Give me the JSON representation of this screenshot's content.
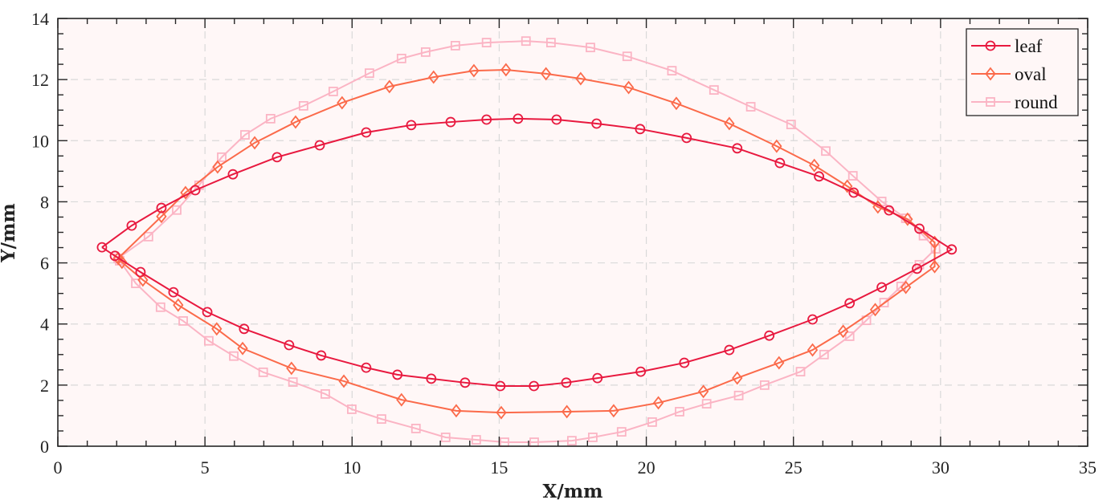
{
  "chart_data": {
    "type": "line",
    "title": "",
    "xlabel": "X/mm",
    "ylabel": "Y/mm",
    "xlim": [
      0,
      35
    ],
    "ylim": [
      0,
      14
    ],
    "xticks": [
      0,
      5,
      10,
      15,
      20,
      25,
      30,
      35
    ],
    "yticks": [
      0,
      2,
      4,
      6,
      8,
      10,
      12,
      14
    ],
    "xtick_labels": [
      "0",
      "5",
      "10",
      "15",
      "20",
      "25",
      "30",
      "35"
    ],
    "ytick_labels": [
      "0",
      "2",
      "4",
      "6",
      "8",
      "10",
      "12",
      "14"
    ],
    "grid": true,
    "legend_position": "upper right",
    "background": "#fff7f7",
    "series": [
      {
        "name": "leaf",
        "color": "#e8193f",
        "marker": "circle",
        "x": [
          1.5,
          2.51,
          3.52,
          4.67,
          5.95,
          7.45,
          8.9,
          10.48,
          12.01,
          13.35,
          14.57,
          15.64,
          16.95,
          18.31,
          19.79,
          21.37,
          23.09,
          24.54,
          25.87,
          27.05,
          28.25,
          29.28,
          30.38,
          29.2,
          28.0,
          26.91,
          25.65,
          24.18,
          22.82,
          21.29,
          19.81,
          18.34,
          17.28,
          16.18,
          15.04,
          13.84,
          12.69,
          11.54,
          10.48,
          8.95,
          7.86,
          6.33,
          5.08,
          3.93,
          2.81,
          1.94,
          1.5
        ],
        "y": [
          6.51,
          7.22,
          7.8,
          8.38,
          8.9,
          9.46,
          9.85,
          10.27,
          10.51,
          10.61,
          10.69,
          10.72,
          10.69,
          10.56,
          10.38,
          10.09,
          9.75,
          9.27,
          8.83,
          8.3,
          7.72,
          7.12,
          6.44,
          5.81,
          5.2,
          4.68,
          4.15,
          3.62,
          3.15,
          2.73,
          2.44,
          2.23,
          2.08,
          1.97,
          1.97,
          2.08,
          2.21,
          2.34,
          2.57,
          2.97,
          3.31,
          3.84,
          4.39,
          5.04,
          5.7,
          6.23,
          6.51
        ]
      },
      {
        "name": "oval",
        "color": "#fb6a4a",
        "marker": "diamond",
        "x": [
          2.05,
          3.52,
          4.34,
          5.43,
          6.69,
          8.08,
          9.66,
          11.27,
          12.77,
          14.14,
          15.23,
          16.59,
          17.77,
          19.4,
          21.02,
          22.82,
          24.43,
          25.71,
          26.83,
          27.87,
          28.88,
          29.8,
          29.8,
          28.82,
          27.78,
          26.69,
          25.65,
          24.51,
          23.09,
          21.94,
          20.41,
          18.89,
          17.3,
          15.07,
          13.54,
          11.68,
          9.72,
          7.94,
          6.28,
          5.4,
          4.09,
          2.89,
          2.18,
          2.05
        ],
        "y": [
          6.15,
          7.52,
          8.3,
          9.14,
          9.93,
          10.61,
          11.24,
          11.77,
          12.08,
          12.29,
          12.32,
          12.19,
          12.03,
          11.74,
          11.22,
          10.56,
          9.82,
          9.19,
          8.51,
          7.83,
          7.43,
          6.67,
          5.88,
          5.2,
          4.47,
          3.76,
          3.15,
          2.73,
          2.23,
          1.79,
          1.42,
          1.16,
          1.13,
          1.1,
          1.16,
          1.52,
          2.13,
          2.55,
          3.2,
          3.84,
          4.62,
          5.44,
          6.02,
          6.15
        ]
      },
      {
        "name": "round",
        "color": "#fbb4c4",
        "marker": "square",
        "x": [
          2.05,
          3.08,
          4.04,
          4.8,
          5.57,
          6.36,
          7.23,
          8.35,
          9.36,
          10.59,
          11.68,
          12.5,
          13.51,
          14.57,
          15.91,
          16.76,
          18.1,
          19.35,
          20.87,
          22.3,
          23.55,
          24.92,
          26.1,
          27.02,
          28.0,
          28.82,
          29.42,
          29.83,
          29.28,
          28.66,
          28.08,
          27.48,
          26.91,
          26.04,
          25.24,
          24.02,
          23.14,
          22.05,
          21.13,
          20.2,
          19.16,
          18.18,
          17.47,
          16.19,
          15.18,
          14.22,
          13.18,
          12.17,
          11.0,
          9.99,
          9.09,
          7.99,
          6.98,
          5.98,
          5.13,
          4.26,
          3.49,
          2.65,
          2.1,
          2.05
        ],
        "y": [
          6.15,
          6.86,
          7.73,
          8.54,
          9.46,
          10.19,
          10.72,
          11.14,
          11.61,
          12.21,
          12.69,
          12.9,
          13.11,
          13.21,
          13.26,
          13.21,
          13.05,
          12.76,
          12.29,
          11.66,
          11.11,
          10.53,
          9.66,
          8.85,
          8.01,
          7.46,
          6.89,
          6.46,
          5.94,
          5.23,
          4.7,
          4.12,
          3.6,
          3.0,
          2.44,
          2.0,
          1.66,
          1.39,
          1.13,
          0.79,
          0.47,
          0.29,
          0.18,
          0.13,
          0.13,
          0.21,
          0.29,
          0.58,
          0.89,
          1.21,
          1.71,
          2.1,
          2.42,
          2.95,
          3.45,
          4.1,
          4.55,
          5.33,
          6.07,
          6.15
        ]
      }
    ]
  }
}
